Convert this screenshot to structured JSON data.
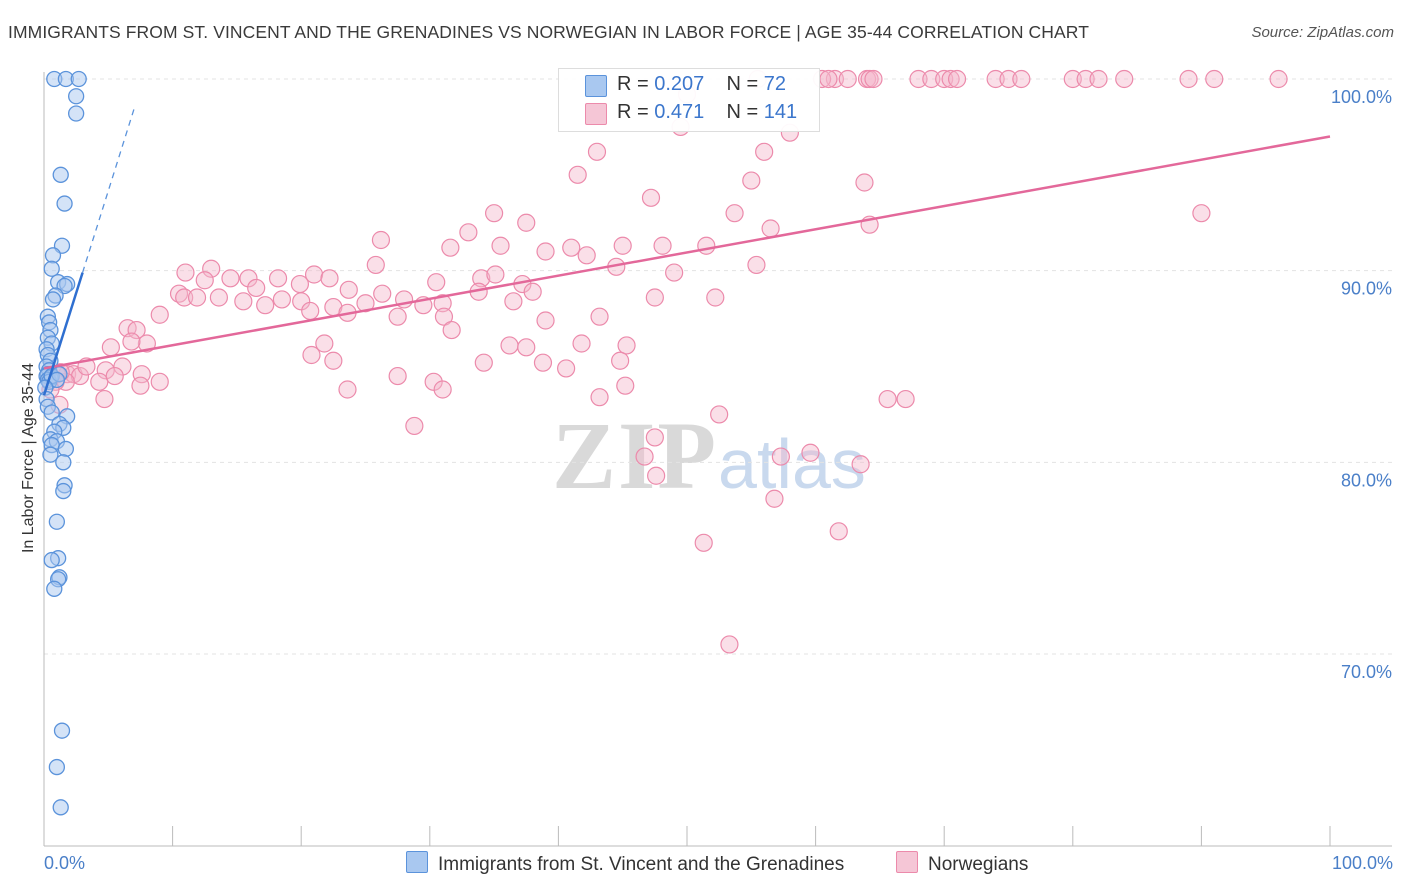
{
  "title": "IMMIGRANTS FROM ST. VINCENT AND THE GRENADINES VS NORWEGIAN IN LABOR FORCE | AGE 35-44 CORRELATION CHART",
  "source": "Source: ZipAtlas.com",
  "watermark": {
    "zip": "ZIP",
    "atlas": "atlas"
  },
  "legend": {
    "r_label": "R =",
    "n_label": "N =",
    "rows": [
      {
        "r": "0.207",
        "n": "72"
      },
      {
        "r": "0.471",
        "n": "141"
      }
    ]
  },
  "colors": {
    "blue_fill": "#a9c8f0",
    "blue_stroke": "#5b93db",
    "blue_line": "#2f6fd0",
    "pink_fill": "#f5b8cc",
    "pink_stroke": "#ec8aab",
    "pink_line": "#e3689a",
    "axis_text": "#4a7fc8",
    "grid": "#e3e3e3"
  },
  "chart_data": {
    "type": "scatter",
    "title": "IMMIGRANTS FROM ST. VINCENT AND THE GRENADINES VS NORWEGIAN IN LABOR FORCE | AGE 35-44 CORRELATION CHART",
    "xlabel": "",
    "ylabel": "In Labor Force | Age 35-44",
    "xlim": [
      0,
      100
    ],
    "ylim": [
      59.5,
      101.5
    ],
    "x_tick_labels": [
      "0.0%",
      "100.0%"
    ],
    "y_ticks": [
      70,
      80,
      90,
      100
    ],
    "y_tick_labels": [
      "70.0%",
      "80.0%",
      "90.0%",
      "100.0%"
    ],
    "grid": "horizontal dashed",
    "legend_position": "bottom-center",
    "series": [
      {
        "name": "Immigrants from St. Vincent and the Grenadines",
        "color": "#5b93db",
        "trend": {
          "x0": 0.0,
          "y0": 83.5,
          "x1": 3.0,
          "y1": 89.9,
          "dashed_to_x": 7.0
        },
        "points": [
          [
            0.8,
            100
          ],
          [
            1.7,
            100
          ],
          [
            2.7,
            100
          ],
          [
            2.5,
            99.1
          ],
          [
            2.5,
            98.2
          ],
          [
            1.3,
            95
          ],
          [
            1.6,
            93.5
          ],
          [
            1.4,
            91.3
          ],
          [
            0.7,
            90.8
          ],
          [
            0.6,
            90.1
          ],
          [
            1.1,
            89.4
          ],
          [
            1.8,
            89.3
          ],
          [
            1.6,
            89.2
          ],
          [
            0.9,
            88.7
          ],
          [
            0.7,
            88.5
          ],
          [
            0.3,
            87.6
          ],
          [
            0.4,
            87.3
          ],
          [
            0.5,
            86.9
          ],
          [
            0.3,
            86.5
          ],
          [
            0.6,
            86.2
          ],
          [
            0.2,
            85.9
          ],
          [
            0.3,
            85.6
          ],
          [
            0.5,
            85.3
          ],
          [
            0.2,
            85
          ],
          [
            0.4,
            84.8
          ],
          [
            0.3,
            84.6
          ],
          [
            0.2,
            84.5
          ],
          [
            0.5,
            84.4
          ],
          [
            0.3,
            84.3
          ],
          [
            0.4,
            84.2
          ],
          [
            0.6,
            84.5
          ],
          [
            1.2,
            84.6
          ],
          [
            1.0,
            84.3
          ],
          [
            0.1,
            83.9
          ],
          [
            0.2,
            83.3
          ],
          [
            0.3,
            82.9
          ],
          [
            0.6,
            82.6
          ],
          [
            1.8,
            82.4
          ],
          [
            1.2,
            82
          ],
          [
            1.5,
            81.8
          ],
          [
            0.8,
            81.6
          ],
          [
            0.5,
            81.2
          ],
          [
            1.0,
            81.1
          ],
          [
            0.6,
            80.9
          ],
          [
            1.7,
            80.7
          ],
          [
            0.5,
            80.4
          ],
          [
            1.5,
            80
          ],
          [
            1.6,
            78.8
          ],
          [
            1.5,
            78.5
          ],
          [
            1.0,
            76.9
          ],
          [
            1.1,
            75
          ],
          [
            0.6,
            74.9
          ],
          [
            1.2,
            74
          ],
          [
            1.1,
            73.9
          ],
          [
            0.8,
            73.4
          ],
          [
            1.4,
            66
          ],
          [
            1.0,
            64.1
          ],
          [
            1.3,
            62
          ]
        ]
      },
      {
        "name": "Norwegians",
        "color": "#ec8aab",
        "trend": {
          "x0": 0.0,
          "y0": 84.9,
          "x1": 100.0,
          "y1": 97.0
        },
        "points": [
          [
            55.5,
            100
          ],
          [
            61.5,
            100
          ],
          [
            60.5,
            100
          ],
          [
            61,
            100
          ],
          [
            62.5,
            100
          ],
          [
            64,
            100
          ],
          [
            64.2,
            100
          ],
          [
            64.5,
            100
          ],
          [
            68,
            100
          ],
          [
            69,
            100
          ],
          [
            70,
            100
          ],
          [
            70.5,
            100
          ],
          [
            71,
            100
          ],
          [
            74,
            100
          ],
          [
            75,
            100
          ],
          [
            76,
            100
          ],
          [
            80,
            100
          ],
          [
            81,
            100
          ],
          [
            82,
            100
          ],
          [
            84,
            100
          ],
          [
            89,
            100
          ],
          [
            91,
            100
          ],
          [
            96,
            100
          ],
          [
            50,
            99.2
          ],
          [
            49.5,
            97.5
          ],
          [
            58,
            97.2
          ],
          [
            43,
            96.2
          ],
          [
            56,
            96.2
          ],
          [
            47.2,
            93.8
          ],
          [
            55,
            94.7
          ],
          [
            63.8,
            94.6
          ],
          [
            90,
            93
          ],
          [
            41.5,
            95
          ],
          [
            53.7,
            93
          ],
          [
            56.5,
            92.2
          ],
          [
            48.1,
            91.3
          ],
          [
            51.5,
            91.3
          ],
          [
            64.2,
            92.4
          ],
          [
            35,
            93
          ],
          [
            37.5,
            92.5
          ],
          [
            33,
            92
          ],
          [
            35.5,
            91.3
          ],
          [
            39,
            91
          ],
          [
            31.6,
            91.2
          ],
          [
            34,
            89.6
          ],
          [
            41,
            91.2
          ],
          [
            42.2,
            90.8
          ],
          [
            45,
            91.3
          ],
          [
            44.5,
            90.2
          ],
          [
            49,
            89.9
          ],
          [
            35.1,
            89.8
          ],
          [
            37.2,
            89.3
          ],
          [
            26.2,
            91.6
          ],
          [
            25.8,
            90.3
          ],
          [
            13,
            90.1
          ],
          [
            14.5,
            89.6
          ],
          [
            15.9,
            89.6
          ],
          [
            18.2,
            89.6
          ],
          [
            19.9,
            89.3
          ],
          [
            21,
            89.8
          ],
          [
            22.2,
            89.6
          ],
          [
            23.7,
            89
          ],
          [
            11,
            89.9
          ],
          [
            10.5,
            88.8
          ],
          [
            12.5,
            89.5
          ],
          [
            16.5,
            89.1
          ],
          [
            18.5,
            88.5
          ],
          [
            20,
            88.4
          ],
          [
            22.5,
            88.1
          ],
          [
            25,
            88.3
          ],
          [
            26.3,
            88.8
          ],
          [
            28,
            88.5
          ],
          [
            29.5,
            88.2
          ],
          [
            30.5,
            89.4
          ],
          [
            31,
            88.3
          ],
          [
            33.8,
            88.9
          ],
          [
            36.5,
            88.4
          ],
          [
            38,
            88.9
          ],
          [
            9,
            87.7
          ],
          [
            10.9,
            88.6
          ],
          [
            11.9,
            88.6
          ],
          [
            13.6,
            88.6
          ],
          [
            15.5,
            88.4
          ],
          [
            17.2,
            88.2
          ],
          [
            20.7,
            87.9
          ],
          [
            23.6,
            87.8
          ],
          [
            27.5,
            87.6
          ],
          [
            31.1,
            87.6
          ],
          [
            39,
            87.4
          ],
          [
            43.2,
            87.6
          ],
          [
            47.5,
            88.6
          ],
          [
            52.2,
            88.6
          ],
          [
            55.4,
            90.3
          ],
          [
            6.5,
            87
          ],
          [
            7.2,
            86.9
          ],
          [
            8,
            86.2
          ],
          [
            5.2,
            86
          ],
          [
            6.8,
            86.3
          ],
          [
            21.8,
            86.2
          ],
          [
            31.7,
            86.9
          ],
          [
            36.2,
            86.1
          ],
          [
            37.5,
            86
          ],
          [
            41.8,
            86.2
          ],
          [
            45.3,
            86.1
          ],
          [
            7.6,
            84.6
          ],
          [
            9.0,
            84.2
          ],
          [
            1.8,
            84.6
          ],
          [
            2.3,
            84.6
          ],
          [
            2.8,
            84.5
          ],
          [
            1.7,
            84.2
          ],
          [
            1.0,
            84.6
          ],
          [
            1.3,
            84.7
          ],
          [
            0.9,
            84.2
          ],
          [
            3.3,
            85
          ],
          [
            4.8,
            84.8
          ],
          [
            6.1,
            85
          ],
          [
            4.3,
            84.2
          ],
          [
            5.5,
            84.5
          ],
          [
            7.5,
            84
          ],
          [
            4.7,
            83.3
          ],
          [
            20.8,
            85.6
          ],
          [
            22.5,
            85.3
          ],
          [
            27.5,
            84.5
          ],
          [
            30.3,
            84.2
          ],
          [
            31,
            83.8
          ],
          [
            34.2,
            85.2
          ],
          [
            38.8,
            85.2
          ],
          [
            40.6,
            84.9
          ],
          [
            44.8,
            85.3
          ],
          [
            45.2,
            84
          ],
          [
            43.2,
            83.4
          ],
          [
            52.5,
            82.5
          ],
          [
            65.6,
            83.3
          ],
          [
            67,
            83.3
          ],
          [
            23.6,
            83.8
          ],
          [
            28.8,
            81.9
          ],
          [
            47.5,
            81.3
          ],
          [
            46.7,
            80.3
          ],
          [
            57.3,
            80.3
          ],
          [
            59.6,
            80.5
          ],
          [
            63.5,
            79.9
          ],
          [
            47.6,
            79.3
          ],
          [
            56.8,
            78.1
          ],
          [
            51.3,
            75.8
          ],
          [
            61.8,
            76.4
          ],
          [
            53.3,
            70.5
          ],
          [
            0.5,
            83.8
          ],
          [
            1.2,
            83
          ]
        ]
      }
    ]
  },
  "bottom_legend": [
    {
      "label": "Immigrants from St. Vincent and the Grenadines"
    },
    {
      "label": "Norwegians"
    }
  ]
}
